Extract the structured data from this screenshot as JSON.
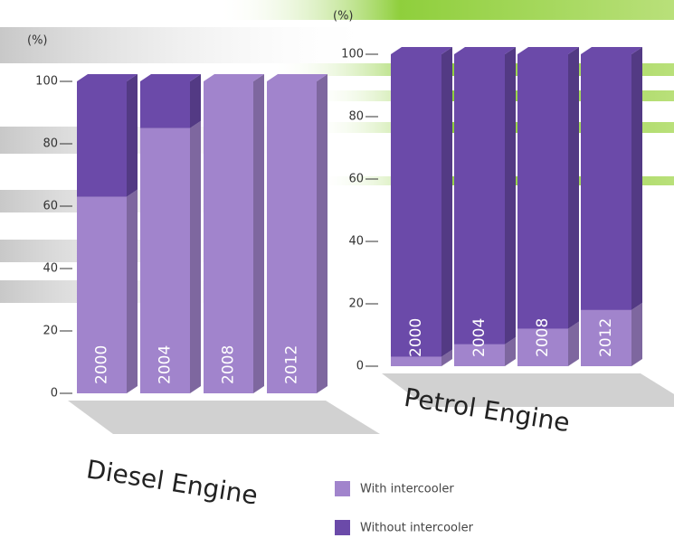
{
  "chart_data": [
    {
      "type": "bar",
      "stacked": true,
      "title": "Diesel Engine",
      "y_label": "(%)",
      "categories": [
        "2000",
        "2004",
        "2008",
        "2012"
      ],
      "series": [
        {
          "name": "With intercooler",
          "color": "#a184cc",
          "values": [
            63,
            85,
            100,
            100
          ]
        },
        {
          "name": "Without intercooler",
          "color": "#6b4aa9",
          "values": [
            37,
            15,
            0,
            0
          ]
        }
      ],
      "ylim": [
        0,
        100
      ],
      "yticks": [
        0,
        20,
        40,
        60,
        80,
        100
      ]
    },
    {
      "type": "bar",
      "stacked": true,
      "title": "Petrol Engine",
      "y_label": "(%)",
      "categories": [
        "2000",
        "2004",
        "2008",
        "2012"
      ],
      "series": [
        {
          "name": "With intercooler",
          "color": "#a184cc",
          "values": [
            3,
            7,
            12,
            18
          ]
        },
        {
          "name": "Without intercooler",
          "color": "#6b4aa9",
          "values": [
            97,
            93,
            88,
            82
          ]
        }
      ],
      "ylim": [
        0,
        100
      ],
      "yticks": [
        0,
        20,
        40,
        60,
        80,
        100
      ]
    }
  ]
}
